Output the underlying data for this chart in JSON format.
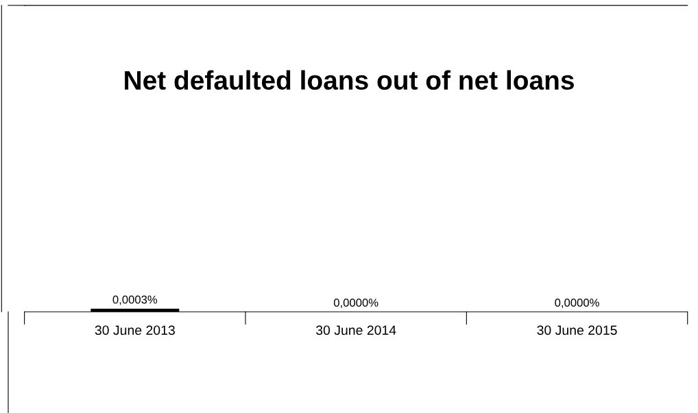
{
  "chart_data": {
    "type": "bar",
    "title": "Net defaulted loans out of net loans",
    "categories": [
      "30 June 2013",
      "30 June 2014",
      "30 June 2015"
    ],
    "values": [
      0.0003,
      0.0,
      0.0
    ],
    "value_labels": [
      "0,0003%",
      "0,0000%",
      "0,0000%"
    ],
    "color": "#000000",
    "ylim": [
      0,
      0.03
    ],
    "grid": false,
    "legend": false
  }
}
